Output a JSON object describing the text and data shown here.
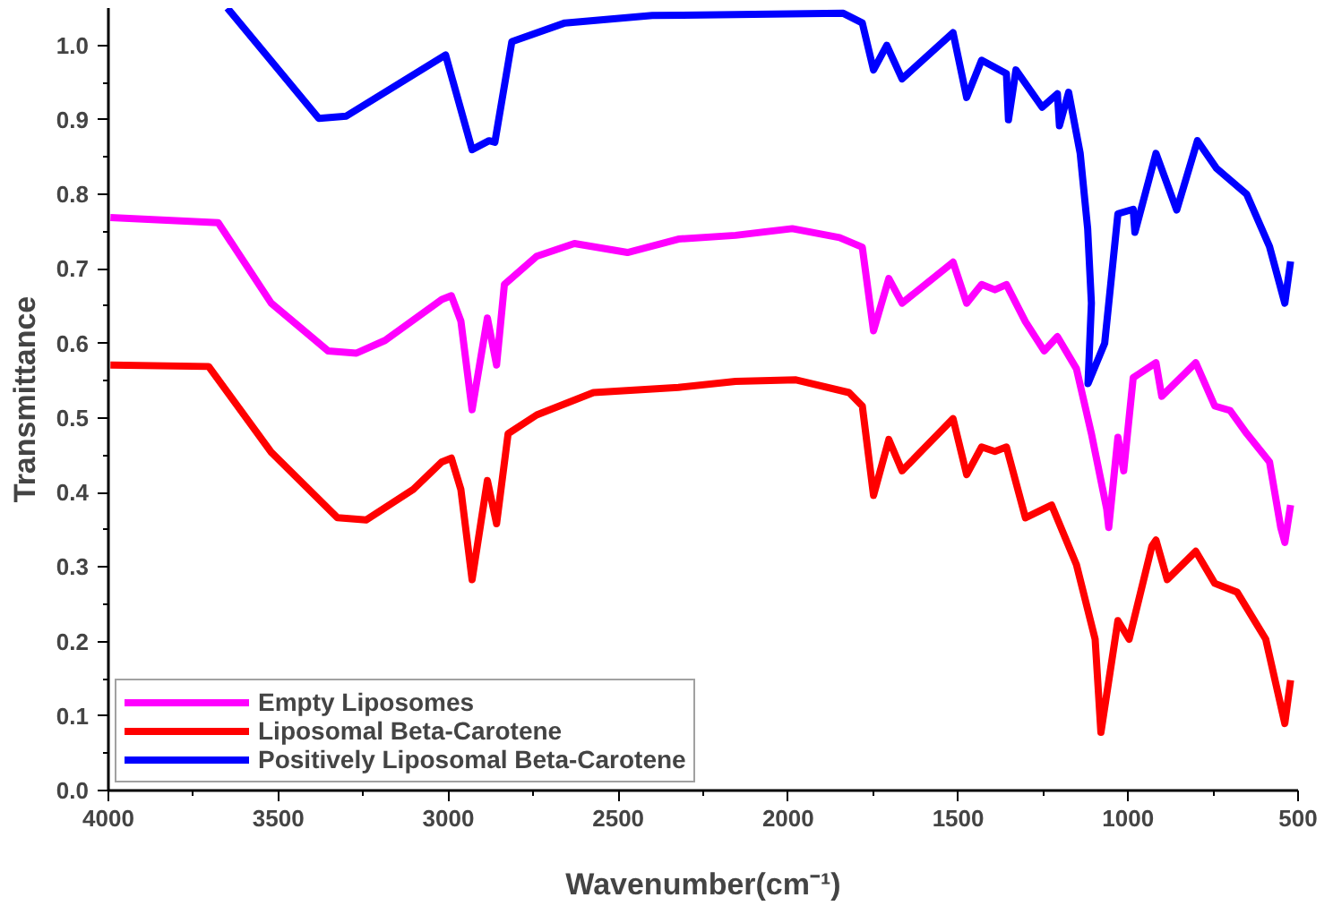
{
  "chart_data": {
    "type": "line",
    "xlabel": "Wavenumber(cm⁻¹)",
    "ylabel": "Transmittance",
    "xlim": [
      4000,
      500
    ],
    "xticks": [
      4000,
      3500,
      3000,
      2500,
      2000,
      1500,
      1000,
      500
    ],
    "ylim": [
      0,
      1.05
    ],
    "yticks": [
      {
        "value": 0,
        "label": "0.0"
      },
      0.1,
      0.2,
      0.3,
      0.4,
      0.5,
      0.6,
      0.7,
      0.8,
      0.9,
      {
        "value": 1,
        "label": "1.0"
      }
    ],
    "grid": false,
    "legend": "bottom left",
    "line_style": "solid",
    "marker": "none",
    "series": [
      {
        "name": "Empty Liposomes",
        "color": "#ff00ff",
        "x": [
          3994,
          3677,
          3521,
          3354,
          3270,
          3186,
          3019,
          2991,
          2963,
          2930,
          2885,
          2858,
          2835,
          2740,
          2629,
          2473,
          2323,
          2155,
          1988,
          1849,
          1782,
          1749,
          1704,
          1665,
          1515,
          1475,
          1431,
          1392,
          1358,
          1302,
          1247,
          1208,
          1152,
          1108,
          1063,
          1057,
          1030,
          1013,
          985,
          918,
          901,
          801,
          745,
          700,
          651,
          584,
          551,
          539,
          522
        ],
        "values": [
          0.769,
          0.762,
          0.654,
          0.59,
          0.587,
          0.604,
          0.659,
          0.664,
          0.63,
          0.511,
          0.634,
          0.571,
          0.679,
          0.717,
          0.734,
          0.722,
          0.74,
          0.745,
          0.754,
          0.742,
          0.729,
          0.617,
          0.687,
          0.654,
          0.709,
          0.654,
          0.679,
          0.672,
          0.679,
          0.629,
          0.59,
          0.609,
          0.566,
          0.479,
          0.378,
          0.353,
          0.474,
          0.429,
          0.554,
          0.574,
          0.529,
          0.574,
          0.516,
          0.51,
          0.479,
          0.441,
          0.353,
          0.333,
          0.383
        ]
      },
      {
        "name": "Liposomal Beta-Carotene",
        "color": "#ff0000",
        "x": [
          3994,
          3705,
          3521,
          3326,
          3242,
          3103,
          3019,
          2991,
          2963,
          2930,
          2885,
          2858,
          2824,
          2740,
          2573,
          2323,
          2155,
          1977,
          1821,
          1782,
          1749,
          1704,
          1665,
          1515,
          1475,
          1431,
          1392,
          1358,
          1302,
          1225,
          1152,
          1097,
          1080,
          1030,
          997,
          930,
          918,
          885,
          801,
          745,
          679,
          595,
          539,
          522
        ],
        "values": [
          0.571,
          0.569,
          0.454,
          0.366,
          0.363,
          0.404,
          0.441,
          0.446,
          0.404,
          0.283,
          0.416,
          0.358,
          0.479,
          0.504,
          0.534,
          0.541,
          0.549,
          0.551,
          0.534,
          0.516,
          0.396,
          0.471,
          0.429,
          0.499,
          0.424,
          0.461,
          0.455,
          0.461,
          0.366,
          0.383,
          0.303,
          0.203,
          0.078,
          0.228,
          0.203,
          0.328,
          0.336,
          0.283,
          0.321,
          0.278,
          0.266,
          0.203,
          0.09,
          0.148
        ]
      },
      {
        "name": "Positively Liposomal Beta-Carotene",
        "color": "#0000ff",
        "x": [
          3650,
          3381,
          3300,
          3008,
          2930,
          2880,
          2863,
          2813,
          2657,
          2400,
          1838,
          1782,
          1749,
          1710,
          1665,
          1515,
          1475,
          1431,
          1358,
          1352,
          1330,
          1253,
          1208,
          1202,
          1175,
          1141,
          1119,
          1108,
          1118,
          1069,
          1030,
          985,
          980,
          918,
          857,
          796,
          740,
          651,
          584,
          539,
          522
        ],
        "values": [
          1.05,
          0.902,
          0.905,
          0.987,
          0.86,
          0.872,
          0.87,
          1.005,
          1.03,
          1.04,
          1.043,
          1.03,
          0.967,
          1.0,
          0.955,
          1.017,
          0.93,
          0.98,
          0.962,
          0.9,
          0.967,
          0.917,
          0.935,
          0.892,
          0.937,
          0.855,
          0.754,
          0.654,
          0.546,
          0.6,
          0.774,
          0.78,
          0.749,
          0.855,
          0.779,
          0.872,
          0.835,
          0.8,
          0.73,
          0.654,
          0.71
        ]
      }
    ]
  }
}
